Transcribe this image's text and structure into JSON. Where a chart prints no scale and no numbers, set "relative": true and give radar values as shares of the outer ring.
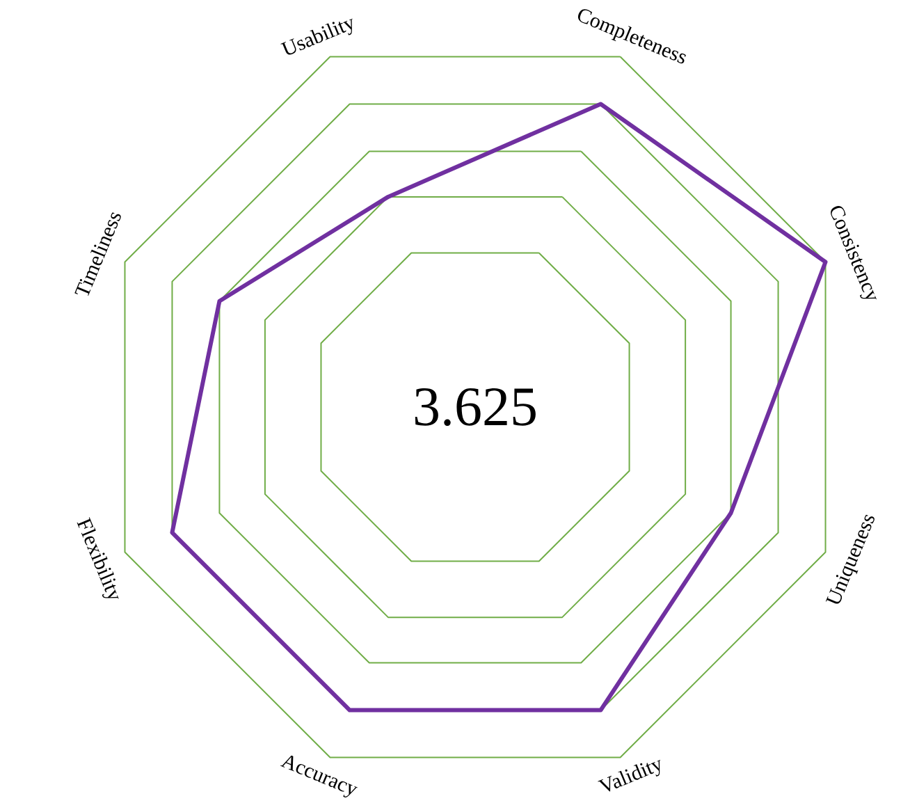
{
  "chart_data": {
    "type": "radar",
    "categories": [
      "Completeness",
      "Consistency",
      "Uniqueness",
      "Validity",
      "Accuracy",
      "Flexibility",
      "Timeliness",
      "Usability"
    ],
    "series": [
      {
        "color": "#7030a0",
        "values": [
          0.865,
          1,
          0.73,
          0.865,
          0.865,
          0.865,
          0.73,
          0.6
        ]
      }
    ],
    "relative": true,
    "grid": true,
    "annotations": [
      "3.625"
    ]
  }
}
